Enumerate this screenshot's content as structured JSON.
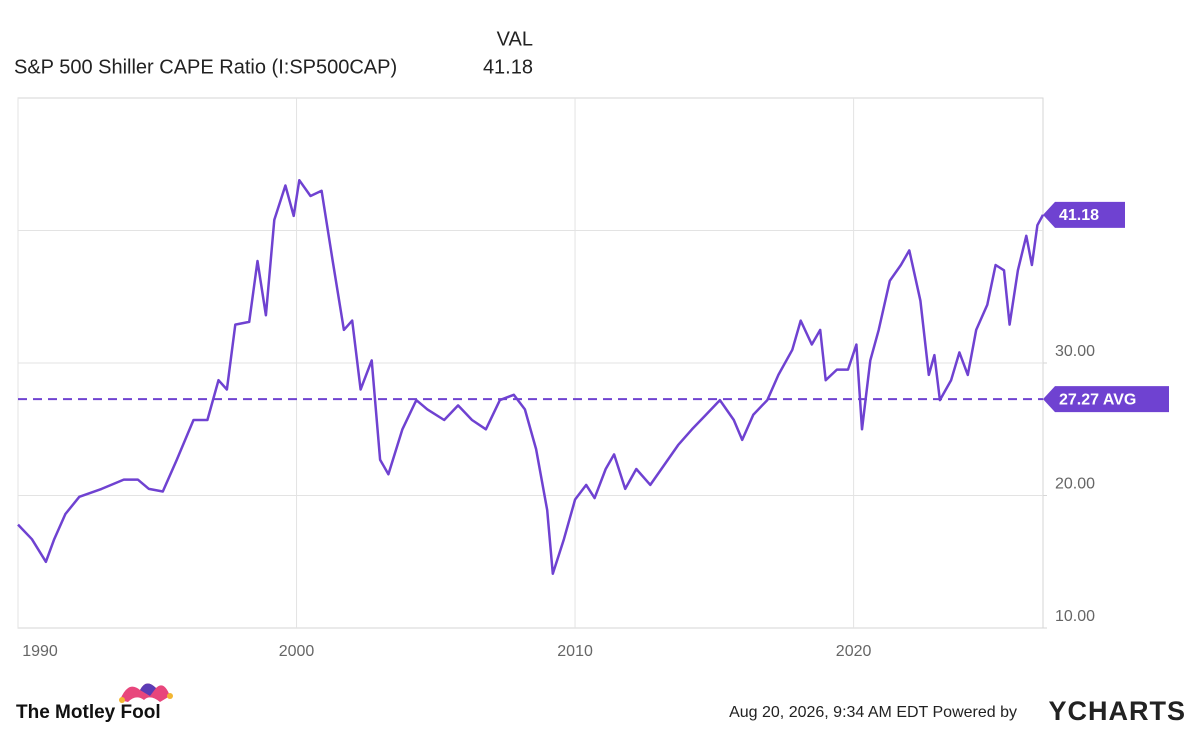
{
  "chart_data": {
    "type": "line",
    "value_header": "VAL",
    "xlim": [
      1990,
      2026.8
    ],
    "xticks": [
      1990,
      2000,
      2010,
      2020
    ],
    "ylim": [
      10,
      50
    ],
    "yticks": [
      {
        "value": 10,
        "label": "10.00"
      },
      {
        "value": 20,
        "label": "20.00"
      },
      {
        "value": 30,
        "label": "30.00"
      }
    ],
    "ygrid": [
      20,
      30,
      40
    ],
    "grid": true,
    "x": [
      1990.0,
      1990.5,
      1991.0,
      1991.3,
      1991.7,
      1992.2,
      1993.0,
      1993.8,
      1994.3,
      1994.7,
      1995.2,
      1995.7,
      1996.3,
      1996.8,
      1997.2,
      1997.5,
      1997.8,
      1998.3,
      1998.6,
      1998.9,
      1999.2,
      1999.6,
      1999.9,
      2000.1,
      2000.5,
      2000.9,
      2001.3,
      2001.7,
      2002.0,
      2002.3,
      2002.7,
      2003.0,
      2003.3,
      2003.8,
      2004.3,
      2004.7,
      2005.3,
      2005.8,
      2006.3,
      2006.8,
      2007.3,
      2007.8,
      2008.2,
      2008.6,
      2009.0,
      2009.2,
      2009.6,
      2010.0,
      2010.4,
      2010.7,
      2011.1,
      2011.4,
      2011.8,
      2012.2,
      2012.7,
      2013.2,
      2013.7,
      2014.2,
      2014.7,
      2015.2,
      2015.7,
      2016.0,
      2016.4,
      2016.9,
      2017.3,
      2017.8,
      2018.1,
      2018.5,
      2018.8,
      2019.0,
      2019.4,
      2019.8,
      2020.1,
      2020.3,
      2020.6,
      2020.9,
      2021.3,
      2021.7,
      2022.0,
      2022.4,
      2022.7,
      2022.9,
      2023.1,
      2023.5,
      2023.8,
      2024.1,
      2024.4,
      2024.8,
      2025.1,
      2025.4,
      2025.6,
      2025.9,
      2026.2,
      2026.4,
      2026.6,
      2026.8
    ],
    "series": [
      {
        "name": "S&P 500 Shiller CAPE Ratio (I:SP500CAP)",
        "color": "#6f42d1",
        "values": [
          17.8,
          16.7,
          15.0,
          16.7,
          18.6,
          19.9,
          20.5,
          21.2,
          21.2,
          20.5,
          20.3,
          22.7,
          25.7,
          25.7,
          28.7,
          28.0,
          32.9,
          33.1,
          37.7,
          33.6,
          40.8,
          43.4,
          41.1,
          43.8,
          42.6,
          43.0,
          37.7,
          32.5,
          33.2,
          28.0,
          30.2,
          22.7,
          21.6,
          25.0,
          27.2,
          26.5,
          25.7,
          26.8,
          25.7,
          25.0,
          27.2,
          27.6,
          26.5,
          23.5,
          18.9,
          14.1,
          16.7,
          19.7,
          20.8,
          19.8,
          22.0,
          23.1,
          20.5,
          22.0,
          20.8,
          22.3,
          23.8,
          25.0,
          26.1,
          27.2,
          25.7,
          24.2,
          26.1,
          27.2,
          29.1,
          31.0,
          33.2,
          31.4,
          32.5,
          28.7,
          29.5,
          29.5,
          31.4,
          25.0,
          30.2,
          32.5,
          36.2,
          37.4,
          38.5,
          34.7,
          29.1,
          30.6,
          27.2,
          28.7,
          30.8,
          29.1,
          32.5,
          34.4,
          37.4,
          37.0,
          32.9,
          37.0,
          39.6,
          37.4,
          40.4,
          41.18
        ],
        "last_value": 41.18
      }
    ],
    "average": 27.27,
    "average_label": "27.27 AVG",
    "brand": "The Motley Fool",
    "timestamp": "Aug 20, 2026, 9:34 AM EDT",
    "powered_by": "Powered by",
    "provider": "YCHARTS"
  }
}
